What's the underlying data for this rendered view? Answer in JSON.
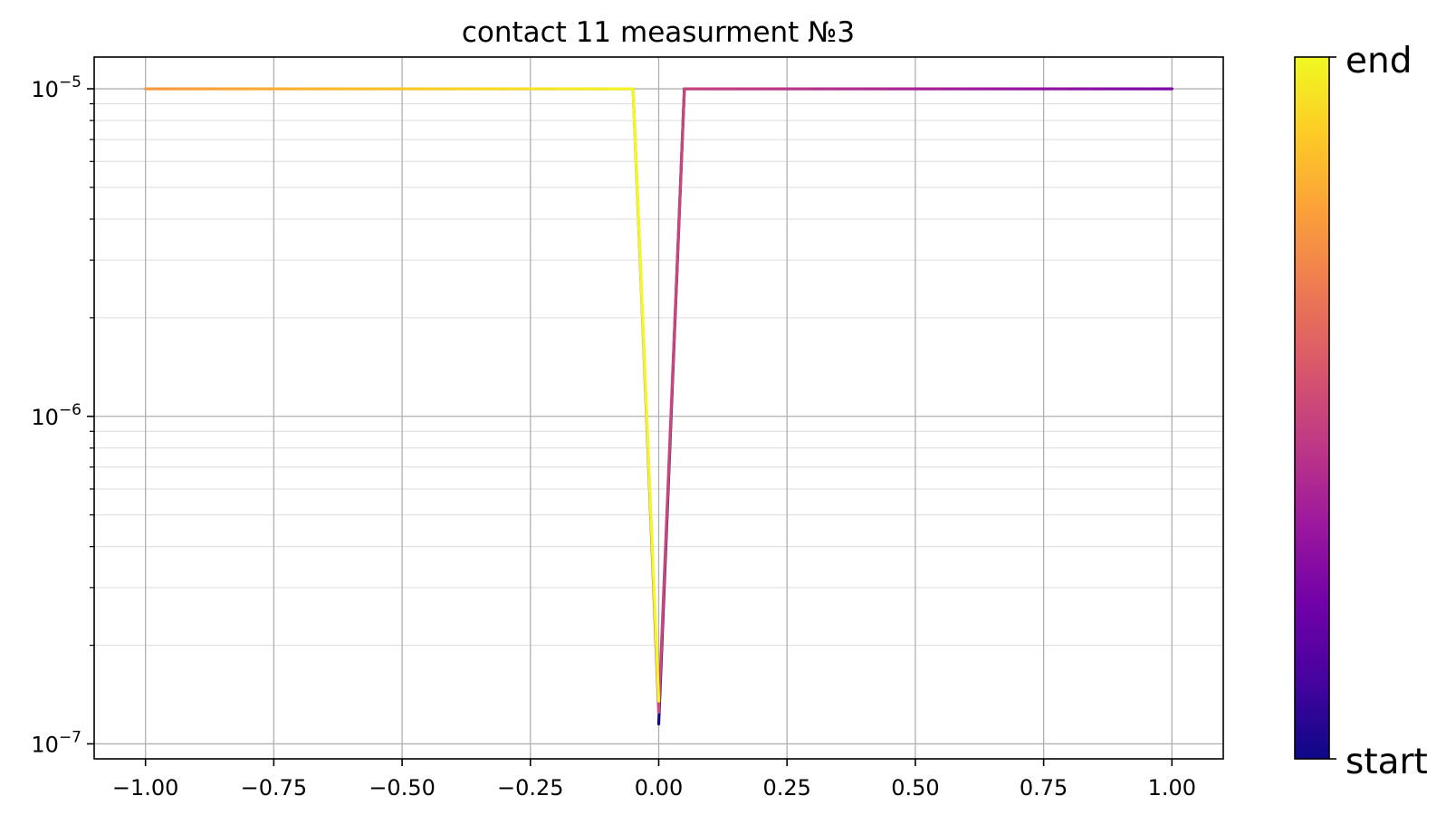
{
  "chart_data": {
    "type": "line",
    "title": "contact 11 measurment №3",
    "xlabel": "",
    "ylabel": "",
    "xlim": [
      -1.1,
      1.1
    ],
    "ylim": [
      9e-08,
      1.25e-05
    ],
    "yscale": "log",
    "grid": true,
    "x_ticks": [
      -1.0,
      -0.75,
      -0.5,
      -0.25,
      0.0,
      0.25,
      0.5,
      0.75,
      1.0
    ],
    "x_tick_labels": [
      "−1.00",
      "−0.75",
      "−0.50",
      "−0.25",
      "0.00",
      "0.25",
      "0.50",
      "0.75",
      "1.00"
    ],
    "y_ticks": [
      {
        "value": 1e-07,
        "base": "10",
        "exp": "−7"
      },
      {
        "value": 1e-06,
        "base": "10",
        "exp": "−6"
      },
      {
        "value": 1e-05,
        "base": "10",
        "exp": "−5"
      }
    ],
    "colormap": "plasma",
    "colormap_stops": [
      "#0d0887",
      "#46039f",
      "#7201a8",
      "#9c179e",
      "#bd3786",
      "#d8576b",
      "#ed7953",
      "#fb9f3a",
      "#fdca26",
      "#f0f921"
    ],
    "colorbar": {
      "top_label": "end",
      "bottom_label": "start"
    },
    "series": [
      {
        "x": [
          0.0,
          0.05,
          0.1,
          0.15,
          0.2,
          0.25,
          0.3,
          0.35,
          0.4,
          0.45,
          0.5,
          0.55,
          0.6,
          0.65,
          0.7,
          0.75,
          0.8,
          0.85,
          0.9,
          0.95,
          1.0,
          0.95,
          0.9,
          0.85,
          0.8,
          0.75,
          0.7,
          0.65,
          0.6,
          0.55,
          0.5,
          0.45,
          0.4,
          0.35,
          0.3,
          0.25,
          0.2,
          0.15,
          0.1,
          0.05,
          0.0,
          -0.05,
          -0.1,
          -0.15,
          -0.2,
          -0.25,
          -0.3,
          -0.35,
          -0.4,
          -0.45,
          -0.5,
          -0.55,
          -0.6,
          -0.65,
          -0.7,
          -0.75,
          -0.8,
          -0.85,
          -0.9,
          -0.95,
          -1.0,
          -0.95,
          -0.9,
          -0.85,
          -0.8,
          -0.75,
          -0.7,
          -0.65,
          -0.6,
          -0.55,
          -0.5,
          -0.45,
          -0.4,
          -0.35,
          -0.3,
          -0.25,
          -0.2,
          -0.15,
          -0.1,
          -0.05,
          0.0
        ],
        "y": [
          1.15e-07,
          1e-05,
          1e-05,
          1e-05,
          1e-05,
          1e-05,
          1e-05,
          1e-05,
          1e-05,
          1e-05,
          1e-05,
          1e-05,
          1e-05,
          1e-05,
          1e-05,
          1e-05,
          1e-05,
          1e-05,
          1e-05,
          1e-05,
          1e-05,
          1e-05,
          1e-05,
          1e-05,
          1e-05,
          1e-05,
          1e-05,
          1e-05,
          1e-05,
          1e-05,
          1e-05,
          1e-05,
          1e-05,
          1e-05,
          1e-05,
          1e-05,
          1e-05,
          1e-05,
          1e-05,
          1e-05,
          1.25e-07,
          1e-05,
          1e-05,
          1e-05,
          1e-05,
          1e-05,
          1e-05,
          1e-05,
          1e-05,
          1e-05,
          1e-05,
          1e-05,
          1e-05,
          1e-05,
          1e-05,
          1e-05,
          1e-05,
          1e-05,
          1e-05,
          1e-05,
          1e-05,
          1e-05,
          1e-05,
          1e-05,
          1e-05,
          1e-05,
          1e-05,
          1e-05,
          1e-05,
          1e-05,
          1e-05,
          1e-05,
          1e-05,
          1e-05,
          1e-05,
          1e-05,
          1e-05,
          1e-05,
          1e-05,
          1e-05,
          1.35e-07
        ]
      }
    ]
  }
}
